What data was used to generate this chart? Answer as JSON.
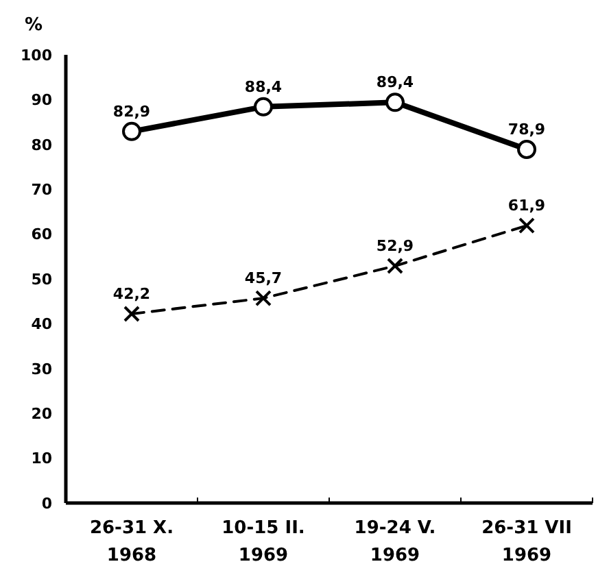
{
  "chart_data": {
    "type": "line",
    "ylabel": "%",
    "categories": [
      "26-31 X. 1968",
      "10-15 II. 1969",
      "19-24 V. 1969",
      "26-31 VII 1969"
    ],
    "series": [
      {
        "color": "#000000",
        "values": [
          82.9,
          88.4,
          89.4,
          78.9
        ],
        "value_labels": [
          "82,9",
          "88,4",
          "89,4",
          "78,9"
        ],
        "marker": "circle",
        "line_style": "solid"
      },
      {
        "color": "#000000",
        "values": [
          42.2,
          45.7,
          52.9,
          61.9
        ],
        "value_labels": [
          "42,2",
          "45,7",
          "52,9",
          "61,9"
        ],
        "marker": "cross",
        "line_style": "dashed"
      }
    ],
    "ylim": [
      0,
      100
    ],
    "yticks": [
      0,
      10,
      20,
      30,
      40,
      50,
      60,
      70,
      80,
      90,
      100
    ],
    "grid": false
  }
}
